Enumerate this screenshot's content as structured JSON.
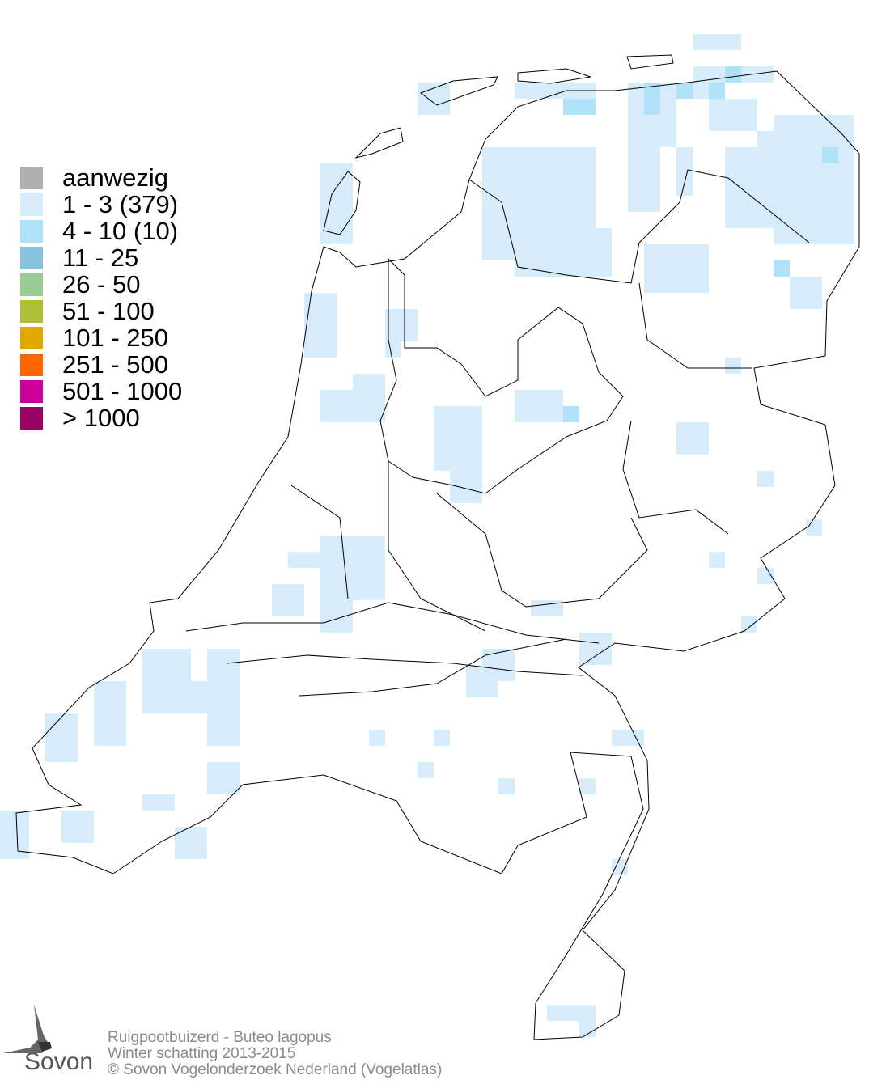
{
  "legend": {
    "items": [
      {
        "label": "aanwezig",
        "color": "#b0b0b0"
      },
      {
        "label": "1 - 3 (379)",
        "color": "#d6ecfa"
      },
      {
        "label": "4 - 10 (10)",
        "color": "#b0e1f8"
      },
      {
        "label": "11 - 25",
        "color": "#86c1df"
      },
      {
        "label": "26 - 50",
        "color": "#99cc93"
      },
      {
        "label": "51 - 100",
        "color": "#afbf33"
      },
      {
        "label": "101 - 250",
        "color": "#e0aa00"
      },
      {
        "label": "251 - 500",
        "color": "#ff6600"
      },
      {
        "label": "501 - 1000",
        "color": "#cc0099"
      },
      {
        "label": "> 1000",
        "color": "#990066"
      }
    ]
  },
  "footer": {
    "species": "Ruigpootbuizerd - Buteo lagopus",
    "period": "Winter schatting 2013-2015",
    "copyright": "© Sovon Vogelonderzoek Nederland (Vogelatlas)"
  },
  "logo": {
    "text": "Sovon"
  },
  "map": {
    "border_color": "#000000"
  }
}
